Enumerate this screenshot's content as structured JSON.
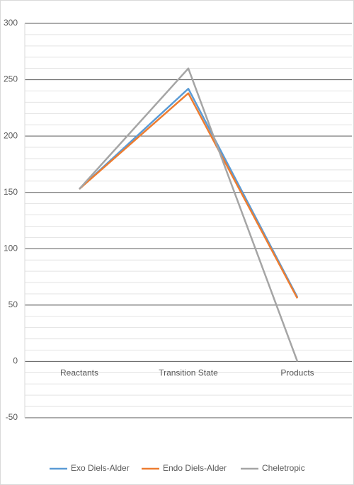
{
  "chart_data": {
    "type": "line",
    "categories": [
      "Reactants",
      "Transition State",
      "Products"
    ],
    "series": [
      {
        "name": "Exo Diels-Alder",
        "color": "#5b9bd5",
        "values": [
          153,
          242,
          57
        ]
      },
      {
        "name": "Endo Diels-Alder",
        "color": "#ed7d31",
        "values": [
          153,
          238,
          56
        ]
      },
      {
        "name": "Cheletropic",
        "color": "#a5a5a5",
        "values": [
          153,
          260,
          0
        ]
      }
    ],
    "ylim": [
      -50,
      300
    ],
    "yticks": [
      -50,
      0,
      50,
      100,
      150,
      200,
      250,
      300
    ],
    "grid": true,
    "minor_grid": true,
    "legend": "bottom"
  }
}
